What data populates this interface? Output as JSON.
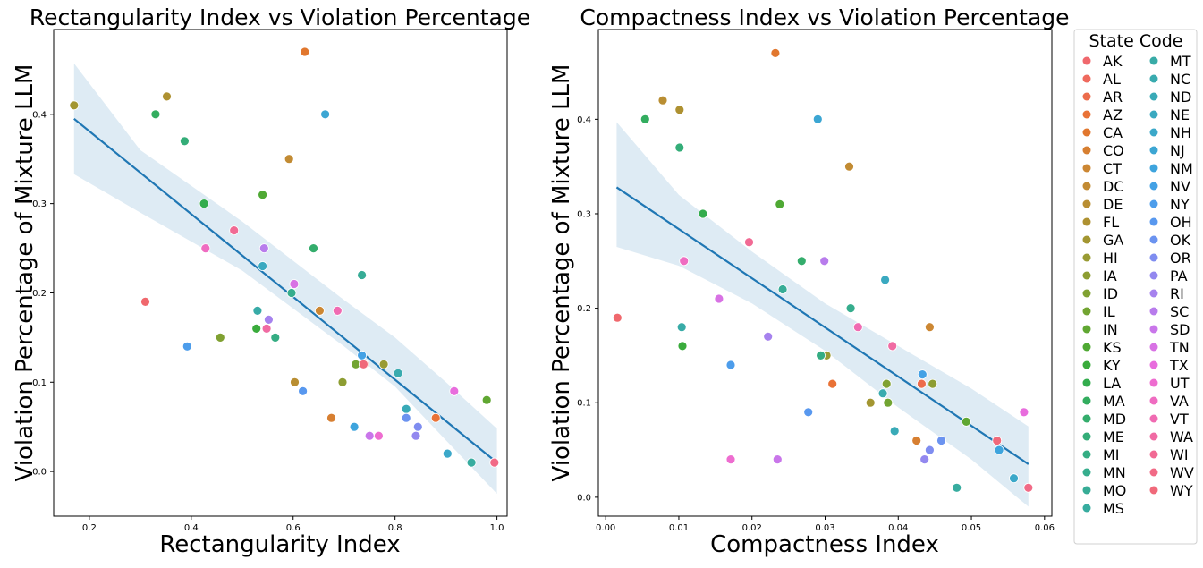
{
  "chart_data": [
    {
      "type": "scatter",
      "title": "Rectangularity Index vs Violation Percentage",
      "xlabel": "Rectangularity Index",
      "ylabel": "Violation Percentage of Mixture LLM",
      "xlim": [
        0.13,
        1.02
      ],
      "ylim": [
        -0.05,
        0.495
      ],
      "xticks": [
        0.2,
        0.4,
        0.6,
        0.8,
        1.0
      ],
      "xtick_labels": [
        "0.2",
        "0.4",
        "0.6",
        "0.8",
        "1.0"
      ],
      "yticks": [
        0.0,
        0.1,
        0.2,
        0.3,
        0.4
      ],
      "ytick_labels": [
        "0.0",
        "0.1",
        "0.2",
        "0.3",
        "0.4"
      ],
      "regression": {
        "x": [
          0.17,
          1.0
        ],
        "y": [
          0.395,
          0.01
        ]
      },
      "confidence_band": {
        "x": [
          0.17,
          0.3,
          0.5,
          0.7,
          0.8,
          0.9,
          1.0
        ],
        "upper": [
          0.457,
          0.36,
          0.28,
          0.192,
          0.15,
          0.1,
          0.048
        ],
        "lower": [
          0.333,
          0.29,
          0.225,
          0.14,
          0.095,
          0.035,
          -0.025
        ]
      },
      "points": [
        {
          "state": "AK",
          "x": 0.31,
          "y": 0.19
        },
        {
          "state": "AL",
          "x": 0.995,
          "y": 0.01
        },
        {
          "state": "AR",
          "x": 0.74,
          "y": 0.12
        },
        {
          "state": "AZ",
          "x": 0.88,
          "y": 0.06
        },
        {
          "state": "CA",
          "x": 0.623,
          "y": 0.47
        },
        {
          "state": "CO",
          "x": 0.675,
          "y": 0.06
        },
        {
          "state": "CT",
          "x": 0.652,
          "y": 0.18
        },
        {
          "state": "DC",
          "x": 0.592,
          "y": 0.35
        },
        {
          "state": "DE",
          "x": 0.603,
          "y": 0.1
        },
        {
          "state": "FL",
          "x": 0.352,
          "y": 0.42
        },
        {
          "state": "GA",
          "x": 0.17,
          "y": 0.41
        },
        {
          "state": "HI",
          "x": 0.778,
          "y": 0.12
        },
        {
          "state": "IA",
          "x": 0.697,
          "y": 0.1
        },
        {
          "state": "ID",
          "x": 0.457,
          "y": 0.15
        },
        {
          "state": "IL",
          "x": 0.723,
          "y": 0.12
        },
        {
          "state": "IN",
          "x": 0.98,
          "y": 0.08
        },
        {
          "state": "KS",
          "x": 0.54,
          "y": 0.31
        },
        {
          "state": "KY",
          "x": 0.528,
          "y": 0.16
        },
        {
          "state": "LA",
          "x": 0.425,
          "y": 0.3
        },
        {
          "state": "MA",
          "x": 0.33,
          "y": 0.4
        },
        {
          "state": "MD",
          "x": 0.64,
          "y": 0.25
        },
        {
          "state": "ME",
          "x": 0.387,
          "y": 0.37
        },
        {
          "state": "MI",
          "x": 0.565,
          "y": 0.15
        },
        {
          "state": "MN",
          "x": 0.597,
          "y": 0.2
        },
        {
          "state": "MO",
          "x": 0.735,
          "y": 0.22
        },
        {
          "state": "MS",
          "x": 0.95,
          "y": 0.01
        },
        {
          "state": "MT",
          "x": 0.53,
          "y": 0.18
        },
        {
          "state": "NC",
          "x": 0.806,
          "y": 0.11
        },
        {
          "state": "ND",
          "x": 0.822,
          "y": 0.07
        },
        {
          "state": "NE",
          "x": 0.54,
          "y": 0.23
        },
        {
          "state": "NH",
          "x": 0.903,
          "y": 0.02
        },
        {
          "state": "NJ",
          "x": 0.663,
          "y": 0.4
        },
        {
          "state": "NM",
          "x": 0.72,
          "y": 0.05
        },
        {
          "state": "NV",
          "x": 0.735,
          "y": 0.13
        },
        {
          "state": "NY",
          "x": 0.392,
          "y": 0.14
        },
        {
          "state": "OH",
          "x": 0.619,
          "y": 0.09
        },
        {
          "state": "OK",
          "x": 0.822,
          "y": 0.06
        },
        {
          "state": "OR",
          "x": 0.845,
          "y": 0.05
        },
        {
          "state": "PA",
          "x": 0.841,
          "y": 0.04
        },
        {
          "state": "RI",
          "x": 0.552,
          "y": 0.17
        },
        {
          "state": "SC",
          "x": 0.543,
          "y": 0.25
        },
        {
          "state": "SD",
          "x": 0.75,
          "y": 0.04
        },
        {
          "state": "TN",
          "x": 0.602,
          "y": 0.21
        },
        {
          "state": "TX",
          "x": 0.916,
          "y": 0.09
        },
        {
          "state": "UT",
          "x": 0.768,
          "y": 0.04
        },
        {
          "state": "VA",
          "x": 0.428,
          "y": 0.25
        },
        {
          "state": "VT",
          "x": 0.687,
          "y": 0.18
        },
        {
          "state": "WA",
          "x": 0.548,
          "y": 0.16
        },
        {
          "state": "WI",
          "x": 0.484,
          "y": 0.27
        },
        {
          "state": "WV",
          "x": 0.995,
          "y": 0.01
        },
        {
          "state": "WY",
          "x": 0.738,
          "y": 0.12
        }
      ]
    },
    {
      "type": "scatter",
      "title": "Compactness Index vs Violation Percentage",
      "xlabel": "Compactness Index",
      "ylabel": "Violation Percentage of Mixture LLM",
      "xlim": [
        -0.001,
        0.061
      ],
      "ylim": [
        -0.02,
        0.495
      ],
      "xticks": [
        0.0,
        0.01,
        0.02,
        0.03,
        0.04,
        0.05,
        0.06
      ],
      "xtick_labels": [
        "0.00",
        "0.01",
        "0.02",
        "0.03",
        "0.04",
        "0.05",
        "0.06"
      ],
      "yticks": [
        0.0,
        0.1,
        0.2,
        0.3,
        0.4
      ],
      "ytick_labels": [
        "0.0",
        "0.1",
        "0.2",
        "0.3",
        "0.4"
      ],
      "regression": {
        "x": [
          0.0015,
          0.0578
        ],
        "y": [
          0.328,
          0.035
        ]
      },
      "confidence_band": {
        "x": [
          0.0015,
          0.01,
          0.02,
          0.03,
          0.04,
          0.05,
          0.0578
        ],
        "upper": [
          0.397,
          0.32,
          0.26,
          0.205,
          0.16,
          0.115,
          0.075
        ],
        "lower": [
          0.265,
          0.245,
          0.205,
          0.155,
          0.095,
          0.04,
          -0.01
        ]
      },
      "points": [
        {
          "state": "AK",
          "x": 0.0016,
          "y": 0.19
        },
        {
          "state": "AL",
          "x": 0.0578,
          "y": 0.01
        },
        {
          "state": "AR",
          "x": 0.0432,
          "y": 0.12
        },
        {
          "state": "AZ",
          "x": 0.031,
          "y": 0.12
        },
        {
          "state": "CA",
          "x": 0.0232,
          "y": 0.47
        },
        {
          "state": "CO",
          "x": 0.0425,
          "y": 0.06
        },
        {
          "state": "CT",
          "x": 0.0443,
          "y": 0.18
        },
        {
          "state": "DC",
          "x": 0.0333,
          "y": 0.35
        },
        {
          "state": "DE",
          "x": 0.0078,
          "y": 0.42
        },
        {
          "state": "FL",
          "x": 0.0101,
          "y": 0.41
        },
        {
          "state": "GA",
          "x": 0.0362,
          "y": 0.1
        },
        {
          "state": "HI",
          "x": 0.0302,
          "y": 0.15
        },
        {
          "state": "IA",
          "x": 0.0447,
          "y": 0.12
        },
        {
          "state": "ID",
          "x": 0.0384,
          "y": 0.12
        },
        {
          "state": "IL",
          "x": 0.0386,
          "y": 0.1
        },
        {
          "state": "IN",
          "x": 0.0493,
          "y": 0.08
        },
        {
          "state": "KS",
          "x": 0.0238,
          "y": 0.31
        },
        {
          "state": "KY",
          "x": 0.0105,
          "y": 0.16
        },
        {
          "state": "LA",
          "x": 0.0133,
          "y": 0.3
        },
        {
          "state": "MA",
          "x": 0.0054,
          "y": 0.4
        },
        {
          "state": "MD",
          "x": 0.0268,
          "y": 0.25
        },
        {
          "state": "ME",
          "x": 0.0101,
          "y": 0.37
        },
        {
          "state": "MI",
          "x": 0.0294,
          "y": 0.15
        },
        {
          "state": "MN",
          "x": 0.0335,
          "y": 0.2
        },
        {
          "state": "MO",
          "x": 0.0242,
          "y": 0.22
        },
        {
          "state": "MS",
          "x": 0.048,
          "y": 0.01
        },
        {
          "state": "MT",
          "x": 0.0104,
          "y": 0.18
        },
        {
          "state": "NC",
          "x": 0.0379,
          "y": 0.11
        },
        {
          "state": "ND",
          "x": 0.0395,
          "y": 0.07
        },
        {
          "state": "NE",
          "x": 0.0382,
          "y": 0.23
        },
        {
          "state": "NH",
          "x": 0.0558,
          "y": 0.02
        },
        {
          "state": "NJ",
          "x": 0.029,
          "y": 0.4
        },
        {
          "state": "NM",
          "x": 0.0538,
          "y": 0.05
        },
        {
          "state": "NV",
          "x": 0.0433,
          "y": 0.13
        },
        {
          "state": "NY",
          "x": 0.0171,
          "y": 0.14
        },
        {
          "state": "OH",
          "x": 0.0277,
          "y": 0.09
        },
        {
          "state": "OK",
          "x": 0.0459,
          "y": 0.06
        },
        {
          "state": "OR",
          "x": 0.0443,
          "y": 0.05
        },
        {
          "state": "PA",
          "x": 0.0436,
          "y": 0.04
        },
        {
          "state": "RI",
          "x": 0.0222,
          "y": 0.17
        },
        {
          "state": "SC",
          "x": 0.0299,
          "y": 0.25
        },
        {
          "state": "SD",
          "x": 0.0235,
          "y": 0.04
        },
        {
          "state": "TN",
          "x": 0.0155,
          "y": 0.21
        },
        {
          "state": "TX",
          "x": 0.0572,
          "y": 0.09
        },
        {
          "state": "UT",
          "x": 0.0171,
          "y": 0.04
        },
        {
          "state": "VA",
          "x": 0.0107,
          "y": 0.25
        },
        {
          "state": "VT",
          "x": 0.0345,
          "y": 0.18
        },
        {
          "state": "WA",
          "x": 0.0392,
          "y": 0.16
        },
        {
          "state": "WI",
          "x": 0.0196,
          "y": 0.27
        },
        {
          "state": "WV",
          "x": 0.0578,
          "y": 0.01
        },
        {
          "state": "WY",
          "x": 0.0535,
          "y": 0.06
        }
      ]
    }
  ],
  "legend": {
    "title": "State Code",
    "columns": 2,
    "entries": [
      {
        "label": "AK",
        "color": "#f0686d"
      },
      {
        "label": "AL",
        "color": "#ef6a5e"
      },
      {
        "label": "AR",
        "color": "#ec6c4c"
      },
      {
        "label": "AZ",
        "color": "#e97236"
      },
      {
        "label": "CA",
        "color": "#e1772e"
      },
      {
        "label": "CO",
        "color": "#d77f31"
      },
      {
        "label": "CT",
        "color": "#cc8733"
      },
      {
        "label": "DC",
        "color": "#c28b33"
      },
      {
        "label": "DE",
        "color": "#b98e32"
      },
      {
        "label": "FL",
        "color": "#ae9131"
      },
      {
        "label": "GA",
        "color": "#a39631"
      },
      {
        "label": "HI",
        "color": "#999b33"
      },
      {
        "label": "IA",
        "color": "#8d9d32"
      },
      {
        "label": "ID",
        "color": "#80a132"
      },
      {
        "label": "IL",
        "color": "#72a432"
      },
      {
        "label": "IN",
        "color": "#60a732"
      },
      {
        "label": "KS",
        "color": "#4fa934"
      },
      {
        "label": "KY",
        "color": "#3aab3c"
      },
      {
        "label": "LA",
        "color": "#33ac4d"
      },
      {
        "label": "MA",
        "color": "#33ad5f"
      },
      {
        "label": "MD",
        "color": "#34ad6c"
      },
      {
        "label": "ME",
        "color": "#34ad78"
      },
      {
        "label": "MI",
        "color": "#35ad83"
      },
      {
        "label": "MN",
        "color": "#36ad8d"
      },
      {
        "label": "MO",
        "color": "#37ac96"
      },
      {
        "label": "MS",
        "color": "#37ac9f"
      },
      {
        "label": "MT",
        "color": "#38aba7"
      },
      {
        "label": "NC",
        "color": "#39abaf"
      },
      {
        "label": "ND",
        "color": "#39aab7"
      },
      {
        "label": "NE",
        "color": "#3aa9c0"
      },
      {
        "label": "NH",
        "color": "#3ba8c9"
      },
      {
        "label": "NJ",
        "color": "#3ca6d3"
      },
      {
        "label": "NM",
        "color": "#3ea4dd"
      },
      {
        "label": "NV",
        "color": "#43a1e5"
      },
      {
        "label": "NY",
        "color": "#4d9deb"
      },
      {
        "label": "OH",
        "color": "#5898ef"
      },
      {
        "label": "OK",
        "color": "#6b93f0"
      },
      {
        "label": "OR",
        "color": "#7f8df0"
      },
      {
        "label": "PA",
        "color": "#9388ef"
      },
      {
        "label": "RI",
        "color": "#a682ee"
      },
      {
        "label": "SC",
        "color": "#b87cec"
      },
      {
        "label": "SD",
        "color": "#c976ea"
      },
      {
        "label": "TN",
        "color": "#d872e4"
      },
      {
        "label": "TX",
        "color": "#e86ddd"
      },
      {
        "label": "UT",
        "color": "#ee6dd0"
      },
      {
        "label": "VA",
        "color": "#ef6cc1"
      },
      {
        "label": "VT",
        "color": "#f06bb2"
      },
      {
        "label": "WA",
        "color": "#f06ba3"
      },
      {
        "label": "WI",
        "color": "#f16a94"
      },
      {
        "label": "WV",
        "color": "#f16a86"
      },
      {
        "label": "WY",
        "color": "#f0697a"
      }
    ]
  },
  "colors": {
    "regression_line": "#1f77b4",
    "confidence_band": "#1f77b4",
    "axes": "#000000",
    "background": "#ffffff"
  }
}
